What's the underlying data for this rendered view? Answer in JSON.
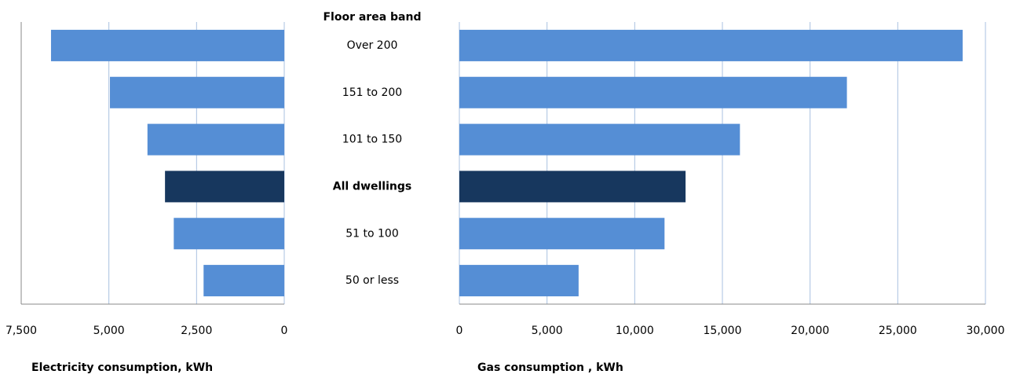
{
  "chart_data": {
    "type": "butterfly",
    "category_title": "Floor area band",
    "categories": [
      "Over 200",
      "151 to 200",
      "101 to 150",
      "All dwellings",
      "51 to 100",
      "50 or less"
    ],
    "color": "#558ed5",
    "highlight_color": "#17375e",
    "highlight_index": 3,
    "grid": true,
    "series": [
      {
        "side": "left",
        "xlabel": "Electricity consumption, kWh",
        "values": [
          6650,
          4970,
          3900,
          3400,
          3150,
          2300
        ],
        "xlim": [
          0,
          7500
        ],
        "xticks": [
          0,
          {
            "value": 2500,
            "label": "2,500"
          },
          {
            "value": 5000,
            "label": "5,000"
          },
          {
            "value": 7500,
            "label": "7,500"
          }
        ]
      },
      {
        "side": "right",
        "xlabel": "Gas consumption , kWh",
        "values": [
          28700,
          22100,
          16000,
          12900,
          11700,
          6800
        ],
        "xlim": [
          0,
          30000
        ],
        "xticks": [
          0,
          {
            "value": 5000,
            "label": "5,000"
          },
          {
            "value": 10000,
            "label": "10,000"
          },
          {
            "value": 15000,
            "label": "15,000"
          },
          {
            "value": 20000,
            "label": "20,000"
          },
          {
            "value": 25000,
            "label": "25,000"
          },
          {
            "value": 30000,
            "label": "30,000"
          }
        ]
      }
    ]
  }
}
